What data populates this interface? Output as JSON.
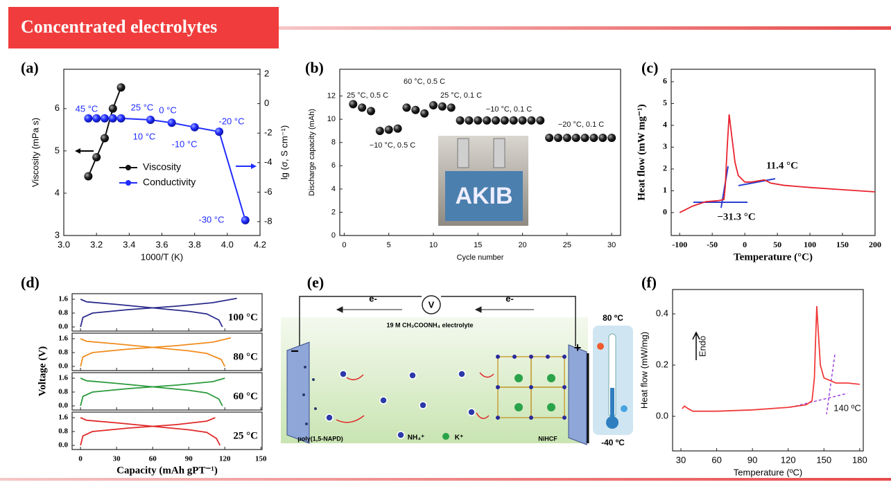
{
  "header": {
    "title": "Concentrated electrolytes"
  },
  "chart_data": [
    {
      "type": "line",
      "panel": "(a)",
      "xlabel": "1000/T (K)",
      "ylabel": "Viscosity (mPa s)",
      "y2label": "lg (σ, S cm⁻¹)",
      "markers": true,
      "xlim": [
        3.0,
        4.2
      ],
      "xticks": [
        {
          "value": 3.0,
          "label": "3.0"
        },
        {
          "value": 3.2,
          "label": "3.2"
        },
        {
          "value": 3.4,
          "label": "3.4"
        },
        {
          "value": 3.6,
          "label": "3.6"
        },
        {
          "value": 3.8,
          "label": "3.8"
        },
        {
          "value": 4.0,
          "label": "4.0"
        },
        {
          "value": 4.2,
          "label": "4.2"
        }
      ],
      "ylim": [
        3,
        6.93
      ],
      "yticks": [
        3,
        4,
        5,
        6
      ],
      "y2lim": [
        -8.94,
        2.33
      ],
      "y2ticks": [
        -8,
        -6,
        -4,
        -2,
        0,
        2
      ],
      "series": [
        {
          "name": "Viscosity",
          "color": "#111111",
          "x": [
            3.15,
            3.2,
            3.25,
            3.3,
            3.35
          ],
          "values": [
            4.4,
            4.85,
            5.3,
            6.0,
            6.5
          ]
        },
        {
          "name": "Conductivity",
          "color": "#1f2bff",
          "axis": "y2",
          "x": [
            3.15,
            3.2,
            3.25,
            3.3,
            3.35,
            3.53,
            3.66,
            3.8,
            3.95,
            4.11
          ],
          "values": [
            -1.0,
            -1.0,
            -1.0,
            -1.0,
            -1.0,
            -1.1,
            -1.3,
            -1.6,
            -1.9,
            -7.9
          ]
        }
      ],
      "annotations": [
        "45 °C",
        "25 °C",
        "0 °C",
        "-20 °C",
        "10 °C",
        "-10 °C",
        "-30 °C"
      ]
    },
    {
      "type": "scatter",
      "panel": "(b)",
      "xlabel": "Cycle number",
      "ylabel": "Discharge capacity (mAh)",
      "color": "#111111",
      "xlim": [
        -0.5,
        31
      ],
      "xticks": [
        0,
        5,
        10,
        15,
        20,
        25,
        30
      ],
      "ylim": [
        0,
        14.3
      ],
      "yticks": [
        0,
        2,
        4,
        6,
        8,
        10,
        12
      ],
      "x": [
        1,
        2,
        3,
        4,
        5,
        6,
        7,
        8,
        9,
        10,
        11,
        12,
        13,
        14,
        15,
        16,
        17,
        18,
        19,
        20,
        21,
        22,
        23,
        24,
        25,
        26,
        27,
        28,
        29,
        30
      ],
      "values": [
        11.3,
        11.0,
        10.7,
        9.0,
        9.1,
        9.2,
        11.0,
        10.8,
        10.5,
        11.2,
        11.1,
        11.0,
        9.9,
        9.9,
        9.9,
        9.9,
        9.9,
        9.9,
        9.9,
        9.9,
        9.9,
        9.9,
        8.4,
        8.4,
        8.4,
        8.4,
        8.4,
        8.4,
        8.4,
        8.4
      ],
      "annotations": [
        "25 °C, 0.5 C",
        "60 °C, 0.5 C",
        "25 °C, 0.1 C",
        "−10 °C, 0.1 C",
        "−10 °C, 0.5 C",
        "−20 °C, 0.1 C"
      ],
      "inset_text": "AKIB"
    },
    {
      "type": "line",
      "panel": "(c)",
      "xlabel": "Temperature (°C)",
      "ylabel": "Heat flow (mW mg⁻¹)",
      "xlim": [
        -113,
        200
      ],
      "xticks": [
        -100,
        -50,
        0,
        50,
        100,
        150,
        200
      ],
      "ylim": [
        -1.05,
        6.57
      ],
      "yticks": [
        0,
        1,
        2,
        3,
        4,
        5,
        6
      ],
      "series": [
        {
          "color": "#e8222c",
          "x": [
            -100,
            -80,
            -60,
            -40,
            -32,
            -30,
            -27,
            -24,
            -20,
            -15,
            -10,
            0,
            10,
            20,
            30,
            40,
            60,
            100,
            150,
            200
          ],
          "values": [
            0.0,
            0.3,
            0.5,
            0.55,
            0.6,
            1.2,
            3.0,
            4.5,
            3.5,
            2.3,
            1.7,
            1.4,
            1.4,
            1.45,
            1.5,
            1.35,
            1.25,
            1.15,
            1.05,
            0.95
          ]
        }
      ],
      "annotations": [
        "11.4 °C",
        "−31.3 °C"
      ]
    },
    {
      "type": "line",
      "panel": "(d)",
      "xlabel": "Capacity (mAh gPT⁻¹)",
      "ylabel": "Voltage (V)",
      "xlim": [
        -7,
        151
      ],
      "xticks": [
        0,
        30,
        60,
        90,
        120,
        150
      ],
      "ylim": [
        -0.24,
        1.92
      ],
      "yticks": [
        {
          "value": 1.6,
          "label": "1.6"
        },
        {
          "value": 0.8,
          "label": "0.8"
        },
        {
          "value": 0.0,
          "label": "0.0"
        }
      ],
      "subplots": [
        {
          "label": "100 °C",
          "series": [
            {
              "color": "#2a2a8c",
              "x": [
                0,
                2,
                10,
                40,
                80,
                110,
                130
              ],
              "values": [
                0.0,
                0.55,
                0.8,
                1.0,
                1.2,
                1.4,
                1.65
              ]
            },
            {
              "color": "#2a2a8c",
              "x": [
                0,
                5,
                30,
                60,
                90,
                105,
                115,
                118
              ],
              "values": [
                1.6,
                1.45,
                1.3,
                1.1,
                0.9,
                0.75,
                0.4,
                0.0
              ]
            }
          ]
        },
        {
          "label": "80 °C",
          "series": [
            {
              "color": "#f08c1e",
              "x": [
                0,
                2,
                10,
                40,
                80,
                110,
                125
              ],
              "values": [
                0.0,
                0.55,
                0.8,
                1.0,
                1.2,
                1.4,
                1.65
              ]
            },
            {
              "color": "#f08c1e",
              "x": [
                0,
                5,
                30,
                60,
                90,
                105,
                117,
                120
              ],
              "values": [
                1.6,
                1.45,
                1.3,
                1.1,
                0.9,
                0.75,
                0.4,
                0.0
              ]
            }
          ]
        },
        {
          "label": "60 °C",
          "series": [
            {
              "color": "#2a9a3a",
              "x": [
                0,
                2,
                10,
                40,
                80,
                110,
                120
              ],
              "values": [
                0.0,
                0.55,
                0.8,
                1.0,
                1.2,
                1.4,
                1.6
              ]
            },
            {
              "color": "#2a9a3a",
              "x": [
                0,
                5,
                30,
                60,
                90,
                105,
                115,
                118
              ],
              "values": [
                1.6,
                1.45,
                1.3,
                1.1,
                0.9,
                0.75,
                0.4,
                0.0
              ]
            }
          ]
        },
        {
          "label": "25 °C",
          "series": [
            {
              "color": "#e02828",
              "x": [
                0,
                2,
                10,
                40,
                80,
                105,
                112
              ],
              "values": [
                0.0,
                0.55,
                0.8,
                1.0,
                1.2,
                1.4,
                1.6
              ]
            },
            {
              "color": "#e02828",
              "x": [
                0,
                5,
                30,
                60,
                90,
                105,
                113,
                116
              ],
              "values": [
                1.6,
                1.45,
                1.3,
                1.1,
                0.9,
                0.75,
                0.4,
                0.0
              ]
            }
          ]
        }
      ]
    },
    {
      "type": "line",
      "panel": "(f)",
      "xlabel": "Temperature (ºC)",
      "ylabel": "Heat flow (mW/mg)",
      "xlim": [
        23,
        183
      ],
      "xticks": [
        30,
        60,
        90,
        120,
        150,
        180
      ],
      "ylim": [
        -0.135,
        0.495
      ],
      "yticks": [
        {
          "value": 0.0,
          "label": "0.0"
        },
        {
          "value": 0.2,
          "label": "0.2"
        },
        {
          "value": 0.4,
          "label": "0.4"
        }
      ],
      "series": [
        {
          "color": "#f03a3a",
          "x": [
            31,
            33,
            36,
            40,
            60,
            90,
            120,
            135,
            140,
            142,
            143,
            144,
            145,
            147,
            150,
            155,
            160,
            170,
            180
          ],
          "values": [
            0.03,
            0.04,
            0.03,
            0.02,
            0.02,
            0.025,
            0.035,
            0.045,
            0.06,
            0.15,
            0.3,
            0.43,
            0.35,
            0.2,
            0.15,
            0.14,
            0.13,
            0.13,
            0.125
          ]
        }
      ],
      "annotations": [
        "140 ºC",
        "Endo"
      ]
    }
  ],
  "diagram": {
    "panel": "(e)",
    "electron_labels": [
      "e-",
      "e-"
    ],
    "meter": "V",
    "electrolyte": "19 M CH₃COONH₄ electrolyte",
    "anode": "poly(1,5-NAPD)",
    "cathode": "NiHCF",
    "legend": [
      "NH₄⁺",
      "K⁺"
    ],
    "temp_high": "80 ºC",
    "temp_low": "-40 ºC",
    "signs": [
      "−",
      "+"
    ]
  }
}
